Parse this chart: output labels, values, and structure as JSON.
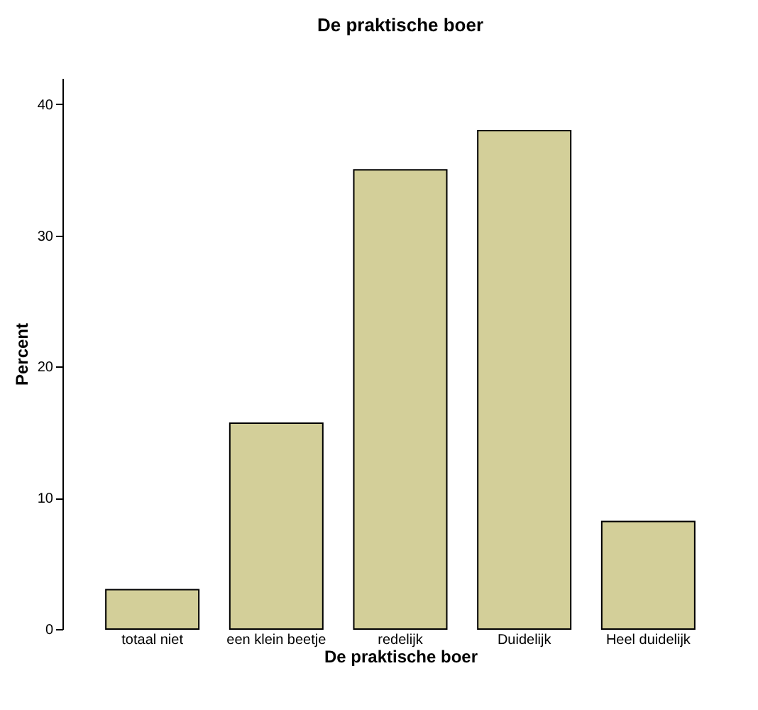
{
  "chart_data": {
    "type": "bar",
    "title": "De praktische boer",
    "xlabel": "De praktische boer",
    "ylabel": "Percent",
    "categories": [
      "totaal niet",
      "een klein beetje",
      "redelijk",
      "Duidelijk",
      "Heel duidelijk"
    ],
    "values": [
      3.0,
      15.7,
      35.0,
      38.0,
      8.2
    ],
    "color": "#d3cf99",
    "ylim": [
      0,
      42
    ],
    "yticks": [
      0,
      10,
      20,
      30,
      40
    ],
    "grid": false
  }
}
